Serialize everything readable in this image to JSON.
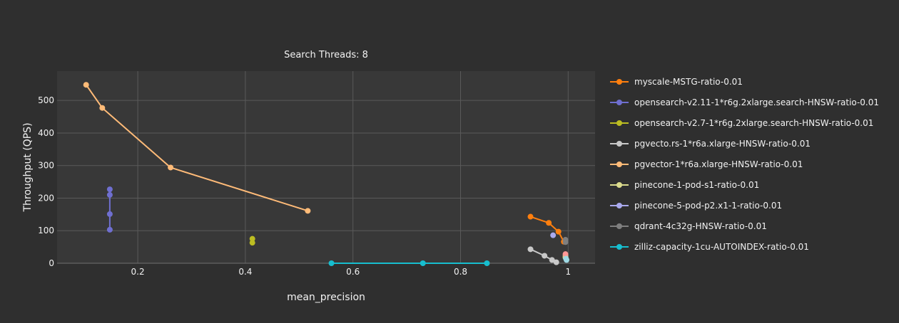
{
  "chart_data": {
    "type": "scatter",
    "title": "Search Threads: 8",
    "xlabel": "mean_precision",
    "ylabel": "Throughput (QPS)",
    "xlim": [
      0.05,
      1.05
    ],
    "ylim": [
      0,
      590
    ],
    "x_ticks": [
      0.2,
      0.4,
      0.6,
      0.8,
      1
    ],
    "x_tick_labels": [
      "0.2",
      "0.4",
      "0.6",
      "0.8",
      "1"
    ],
    "y_ticks": [
      0,
      100,
      200,
      300,
      400,
      500
    ],
    "y_tick_labels": [
      "0",
      "100",
      "200",
      "300",
      "400",
      "500"
    ],
    "grid": true,
    "legend_position": "right",
    "series": [
      {
        "name": "myscale-MSTG-ratio-0.01",
        "color": "#ff7f0e",
        "points": [
          [
            0.93,
            143
          ],
          [
            0.964,
            124
          ],
          [
            0.982,
            97
          ],
          [
            0.992,
            66
          ]
        ]
      },
      {
        "name": "opensearch-v2.11-1*r6g.2xlarge.search-HNSW-ratio-0.01",
        "color": "#6f6fd0",
        "points": [
          [
            0.148,
            227
          ],
          [
            0.148,
            210
          ],
          [
            0.148,
            151
          ],
          [
            0.148,
            103
          ]
        ]
      },
      {
        "name": "opensearch-v2.7-1*r6g.2xlarge.search-HNSW-ratio-0.01",
        "color": "#bcbd22",
        "points": [
          [
            0.413,
            75
          ],
          [
            0.413,
            63
          ]
        ]
      },
      {
        "name": "pgvecto.rs-1*r6a.xlarge-HNSW-ratio-0.01",
        "color": "#c8c8c8",
        "points": [
          [
            0.93,
            43
          ],
          [
            0.956,
            23
          ],
          [
            0.97,
            10
          ],
          [
            0.978,
            3
          ]
        ]
      },
      {
        "name": "pgvector-1*r6a.xlarge-HNSW-ratio-0.01",
        "color": "#ffbb78",
        "points": [
          [
            0.104,
            548
          ],
          [
            0.134,
            477
          ],
          [
            0.261,
            294
          ],
          [
            0.516,
            161
          ]
        ]
      },
      {
        "name": "pinecone-1-pod-s1-ratio-0.01",
        "color": "#dbdb8d",
        "points": [
          [
            0.995,
            22
          ],
          [
            0.995,
            18
          ]
        ]
      },
      {
        "name": "pinecone-5-pod-p2.x1-1-ratio-0.01",
        "color": "#aaaaee",
        "points": [
          [
            0.972,
            86
          ]
        ]
      },
      {
        "name": "qdrant-4c32g-HNSW-ratio-0.01",
        "color": "#7f7f7f",
        "points": [
          [
            0.995,
            72
          ],
          [
            0.995,
            65
          ]
        ]
      },
      {
        "name": "zilliz-capacity-1cu-AUTOINDEX-ratio-0.01",
        "color": "#17becf",
        "points": [
          [
            0.56,
            0
          ],
          [
            0.73,
            0
          ],
          [
            0.849,
            0
          ]
        ]
      }
    ],
    "extra_points": [
      {
        "x": 0.995,
        "y": 28,
        "color": "#ff9896"
      },
      {
        "x": 0.996,
        "y": 14,
        "color": "#9edae5"
      },
      {
        "x": 0.997,
        "y": 10,
        "color": "#9edae5"
      }
    ]
  }
}
